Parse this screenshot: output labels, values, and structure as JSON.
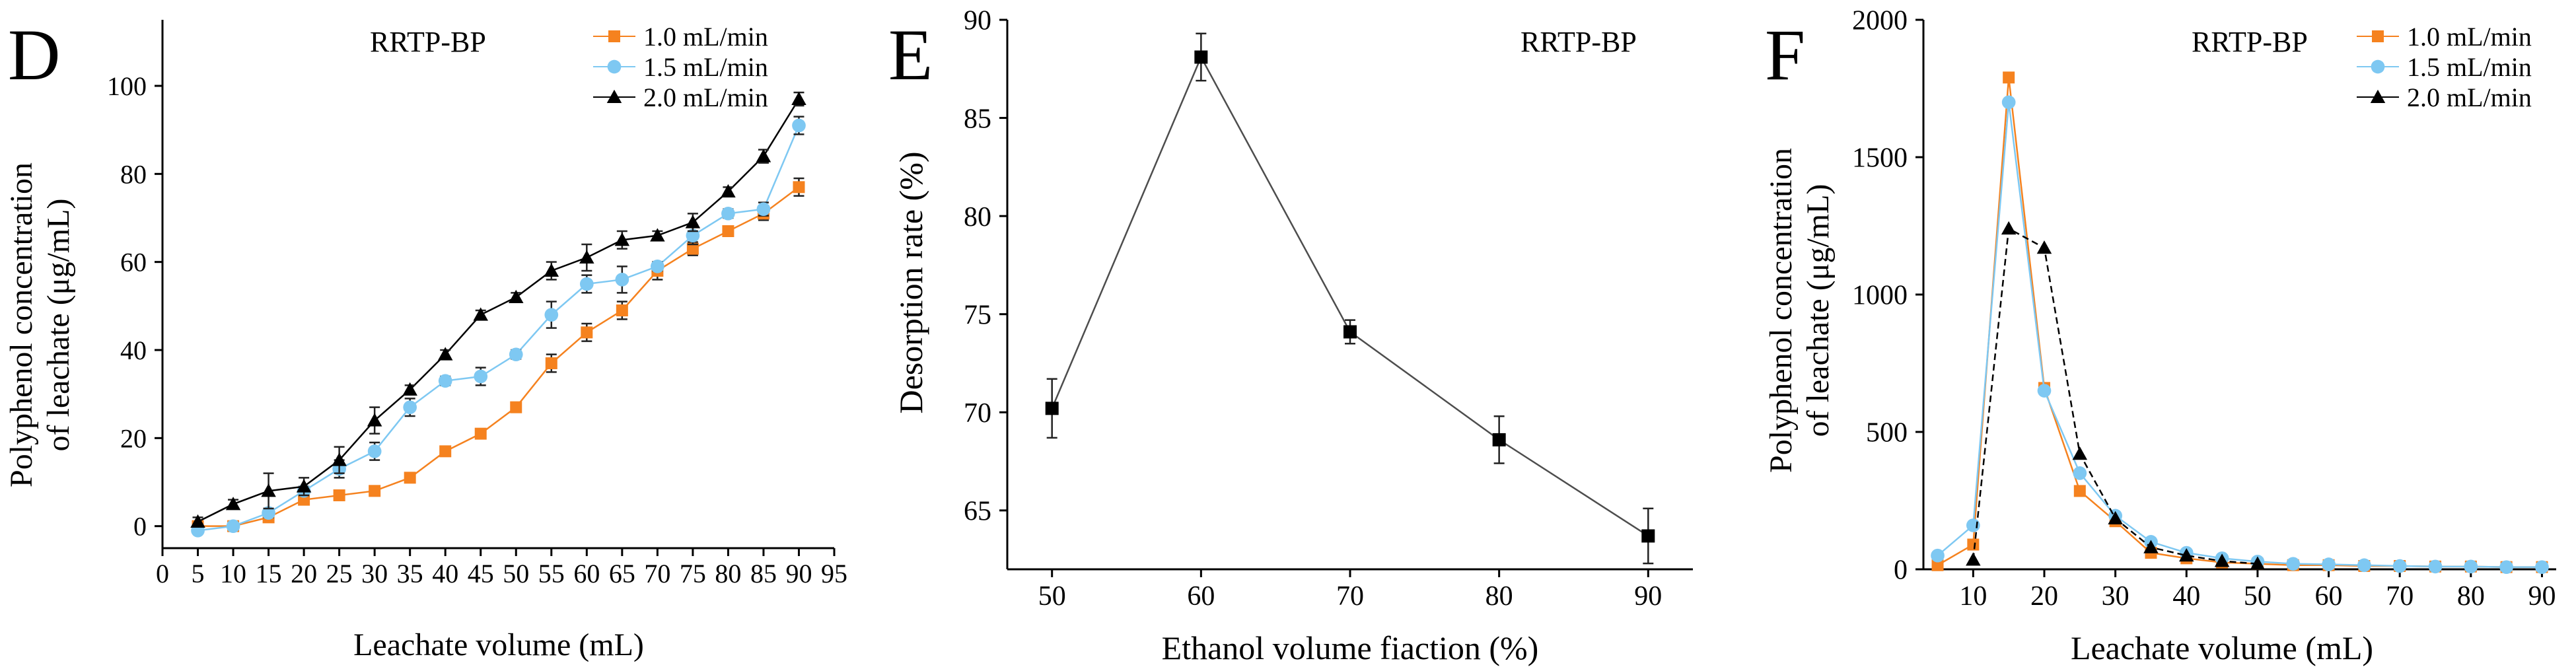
{
  "colors": {
    "orange": "#f5821f",
    "blue": "#7ec8f2",
    "black": "#000000",
    "line_gray": "#4d4d4d"
  },
  "chart_data": [
    {
      "type": "line",
      "panel_label": "D",
      "inset_label": "RRTP-BP",
      "title": "",
      "xlabel": "Leachate volume (mL)",
      "ylabel_line1": "Polyphenol concentration",
      "ylabel_line2": "of leachate (μg/mL)",
      "xlim": [
        0,
        95
      ],
      "ylim": [
        -5,
        115
      ],
      "x_ticks": [
        0,
        5,
        10,
        15,
        20,
        25,
        30,
        35,
        40,
        45,
        50,
        55,
        60,
        65,
        70,
        75,
        80,
        85,
        90,
        95
      ],
      "y_ticks": [
        0,
        20,
        40,
        60,
        80,
        100
      ],
      "legend_position": "top-right",
      "x": [
        5,
        10,
        15,
        20,
        25,
        30,
        35,
        40,
        45,
        50,
        55,
        60,
        65,
        70,
        75,
        80,
        85,
        90
      ],
      "series": [
        {
          "name": "1.0 mL/min",
          "marker": "square",
          "color": "#f5821f",
          "values": [
            0,
            0,
            2,
            6,
            7,
            8,
            11,
            17,
            21,
            27,
            37,
            44,
            49,
            58,
            63,
            67,
            71,
            77
          ],
          "errors": [
            0.5,
            0.5,
            1,
            1,
            1,
            1,
            1,
            1,
            1,
            1,
            2,
            2,
            2,
            2,
            1.5,
            1,
            1.5,
            2
          ]
        },
        {
          "name": "1.5 mL/min",
          "marker": "circle",
          "color": "#7ec8f2",
          "values": [
            -1,
            0,
            3,
            8,
            13,
            17,
            27,
            33,
            34,
            39,
            48,
            55,
            56,
            59,
            66,
            71,
            72,
            91
          ],
          "errors": [
            0.5,
            0.5,
            1,
            1,
            2,
            2,
            2,
            1,
            2,
            1,
            3,
            2,
            3,
            1,
            2,
            1,
            1.5,
            2
          ]
        },
        {
          "name": "2.0 mL/min",
          "marker": "triangle",
          "color": "#000000",
          "values": [
            1,
            5,
            8,
            9,
            15,
            24,
            31,
            39,
            48,
            52,
            58,
            61,
            65,
            66,
            69,
            76,
            84,
            97
          ],
          "errors": [
            1,
            1,
            4,
            2,
            3,
            3,
            1,
            1,
            1,
            1,
            2,
            3,
            2,
            1,
            2,
            1,
            1.5,
            1.5
          ]
        }
      ]
    },
    {
      "type": "line",
      "panel_label": "E",
      "inset_label": "RRTP-BP",
      "title": "",
      "xlabel": "Ethanol volume fiaction (%)",
      "ylabel": "Desorption rate (%)",
      "xlim": [
        47,
        93
      ],
      "ylim": [
        62,
        90
      ],
      "x_ticks": [
        50,
        60,
        70,
        80,
        90
      ],
      "y_ticks": [
        65,
        70,
        75,
        80,
        85,
        90
      ],
      "x": [
        50,
        60,
        70,
        80,
        90
      ],
      "series": [
        {
          "name": "Desorption rate",
          "marker": "square",
          "color": "#000000",
          "values": [
            70.2,
            88.1,
            74.1,
            68.6,
            63.7
          ],
          "errors": [
            1.5,
            1.2,
            0.6,
            1.2,
            1.4
          ]
        }
      ]
    },
    {
      "type": "line",
      "panel_label": "F",
      "inset_label": "RRTP-BP",
      "title": "",
      "xlabel": "Leachate volume (mL)",
      "ylabel_line1": "Polyphenol concentration",
      "ylabel_line2": "of leachate (μg/mL)",
      "xlim": [
        3,
        92
      ],
      "ylim": [
        0,
        2000
      ],
      "x_ticks": [
        10,
        20,
        30,
        40,
        50,
        60,
        70,
        80,
        90
      ],
      "y_ticks": [
        0,
        500,
        1000,
        1500,
        2000
      ],
      "legend_position": "top-right",
      "series": [
        {
          "name": "1.0 mL/min",
          "marker": "square",
          "color": "#f5821f",
          "x": [
            5,
            10,
            15,
            20,
            25,
            30,
            35,
            40,
            45,
            50,
            55,
            60,
            65,
            70,
            75,
            80,
            85,
            90
          ],
          "values": [
            15,
            90,
            1790,
            660,
            285,
            175,
            60,
            40,
            25,
            20,
            15,
            15,
            12,
            12,
            10,
            10,
            8,
            8
          ]
        },
        {
          "name": "1.5 mL/min",
          "marker": "circle",
          "color": "#7ec8f2",
          "x": [
            5,
            10,
            15,
            20,
            25,
            30,
            35,
            40,
            45,
            50,
            55,
            60,
            65,
            70,
            75,
            80,
            85,
            90
          ],
          "values": [
            50,
            160,
            1700,
            650,
            350,
            195,
            100,
            60,
            40,
            28,
            20,
            18,
            15,
            12,
            10,
            10,
            8,
            8
          ]
        },
        {
          "name": "2.0 mL/min",
          "marker": "triangle",
          "color": "#000000",
          "x": [
            10,
            15,
            20,
            25,
            30,
            35,
            40,
            45,
            50
          ],
          "values": [
            35,
            1240,
            1170,
            420,
            185,
            80,
            50,
            30,
            20
          ]
        }
      ]
    }
  ]
}
